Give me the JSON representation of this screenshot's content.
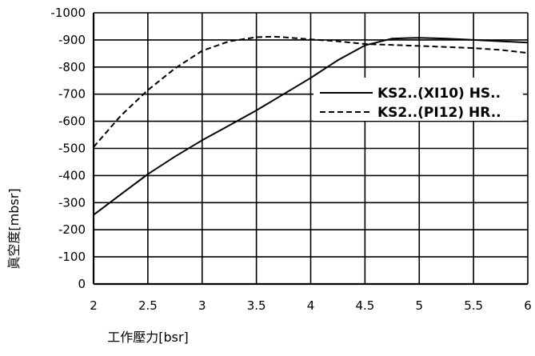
{
  "chart_data": {
    "type": "line",
    "title": "",
    "xlabel": "工作壓力[bsr]",
    "ylabel": "眞空度[mbsr]",
    "xlim": [
      2,
      6
    ],
    "ylim": [
      0,
      -1000
    ],
    "x_ticks": [
      "2",
      "2.5",
      "3",
      "3.5",
      "4",
      "4.5",
      "5",
      "5.5",
      "6"
    ],
    "y_ticks": [
      "-1000",
      "-900",
      "-800",
      "-700",
      "-600",
      "-500",
      "-400",
      "-300",
      "-200",
      "-100",
      "0"
    ],
    "x_tick_values": [
      2,
      2.5,
      3,
      3.5,
      4,
      4.5,
      5,
      5.5,
      6
    ],
    "y_tick_values": [
      -1000,
      -900,
      -800,
      -700,
      -600,
      -500,
      -400,
      -300,
      -200,
      -100,
      0
    ],
    "grid": true,
    "legend_position": "right",
    "series": [
      {
        "name": "KS2..(XI10) HS..",
        "style": "solid",
        "color": "#000000",
        "x": [
          2.0,
          2.25,
          2.5,
          2.75,
          3.0,
          3.25,
          3.5,
          3.75,
          4.0,
          4.25,
          4.5,
          4.75,
          5.0,
          5.25,
          5.5,
          5.75,
          6.0
        ],
        "y": [
          -255,
          -330,
          -405,
          -470,
          -530,
          -585,
          -640,
          -700,
          -760,
          -825,
          -880,
          -905,
          -908,
          -905,
          -900,
          -895,
          -890
        ]
      },
      {
        "name": "KS2..(PI12) HR..",
        "style": "dashed",
        "color": "#000000",
        "x": [
          2.0,
          2.25,
          2.5,
          2.75,
          3.0,
          3.25,
          3.5,
          3.65,
          3.75,
          4.0,
          4.25,
          4.5,
          5.0,
          5.5,
          5.75,
          6.0
        ],
        "y": [
          -505,
          -620,
          -715,
          -795,
          -860,
          -895,
          -910,
          -912,
          -910,
          -902,
          -895,
          -885,
          -878,
          -870,
          -863,
          -852
        ]
      }
    ]
  }
}
